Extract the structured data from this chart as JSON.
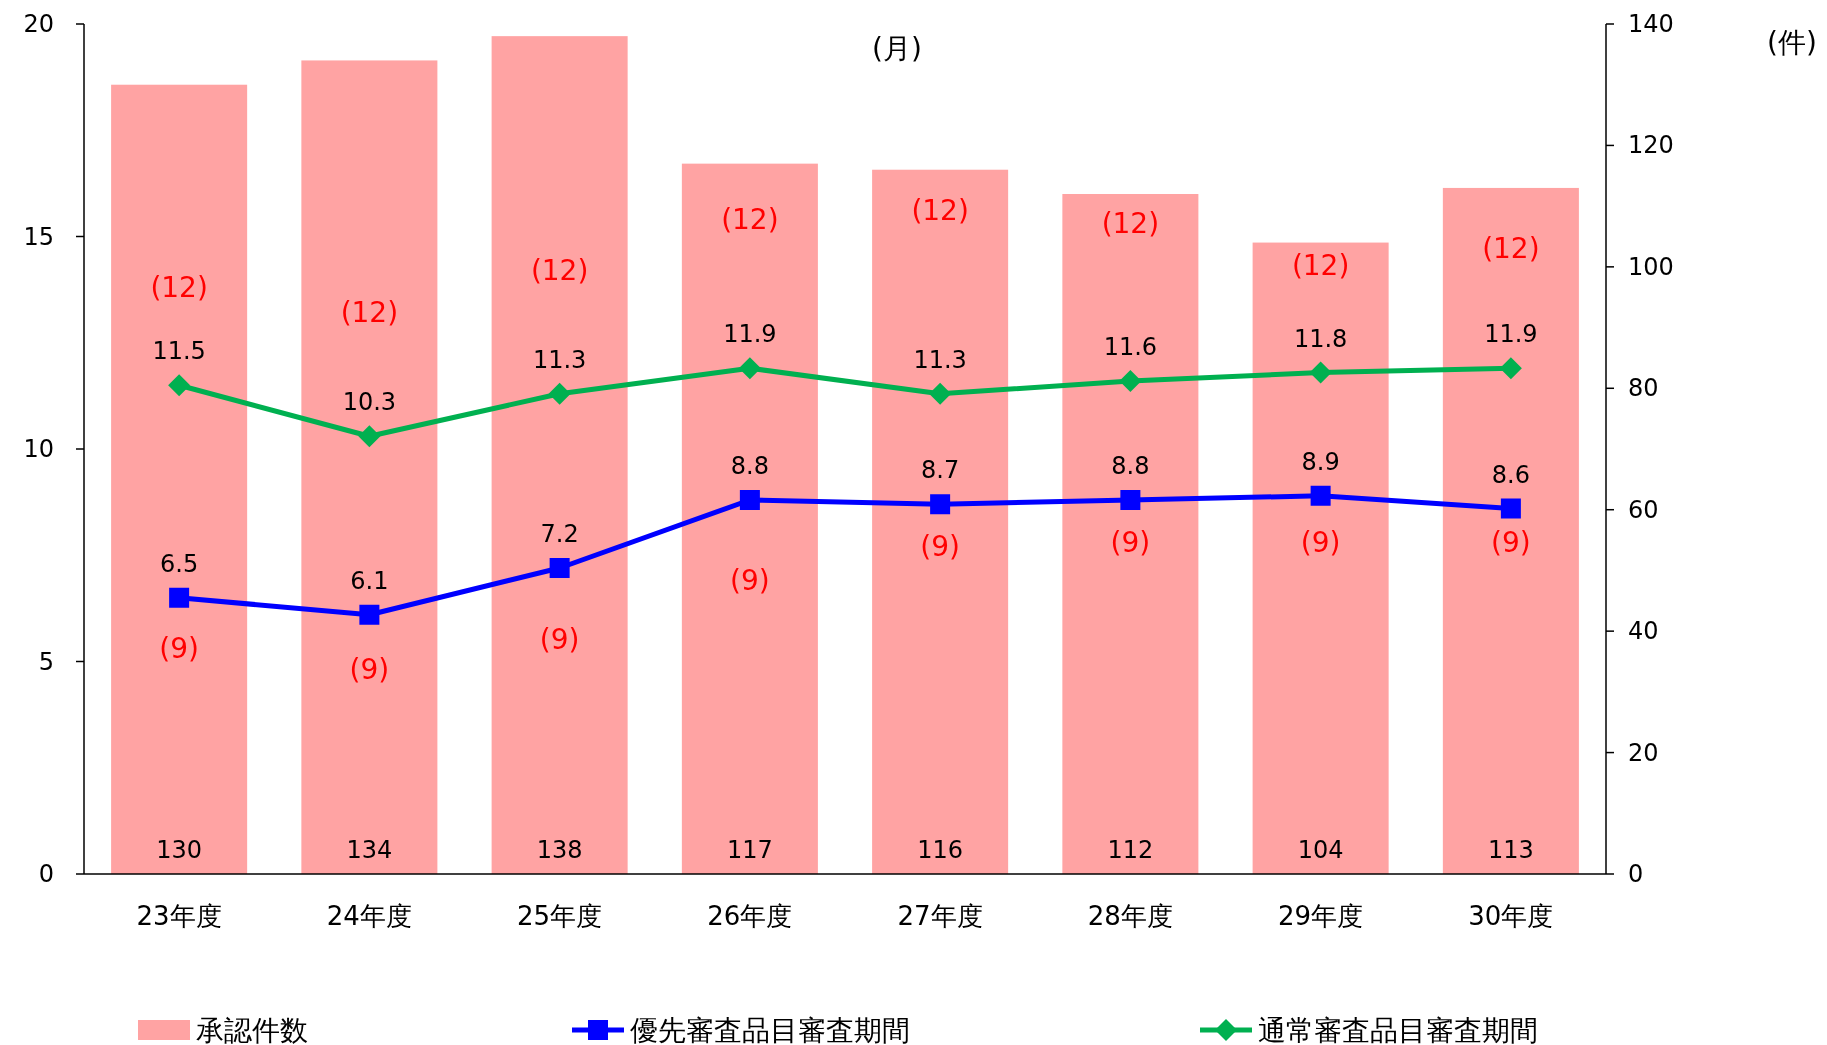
{
  "chart_data": {
    "type": "bar",
    "y2label": "(件)",
    "categories": [
      "23年度",
      "24年度",
      "25年度",
      "26年度",
      "27年度",
      "28年度",
      "29年度",
      "30年度"
    ],
    "series": [
      {
        "name": "承認件数",
        "axis": "y2",
        "color": "#ffa3a3",
        "values": [
          130,
          134,
          138,
          117,
          116,
          112,
          104,
          113
        ]
      },
      {
        "name": "優先審査品目審査期間",
        "type": "line",
        "marker": "square",
        "color": "#0000ff",
        "values": [
          6.5,
          6.1,
          7.2,
          8.8,
          8.7,
          8.8,
          8.9,
          8.6
        ]
      },
      {
        "name": "通常審査品目審査期間",
        "type": "line",
        "marker": "diamond",
        "color": "#00b050",
        "values": [
          11.5,
          10.3,
          11.3,
          11.9,
          11.3,
          11.6,
          11.8,
          11.9
        ]
      }
    ],
    "ylim": [
      0,
      20
    ],
    "yticks": [
      0,
      5,
      10,
      15,
      20
    ],
    "y2lim": [
      0,
      140
    ],
    "y2ticks": [
      0,
      20,
      40,
      60,
      80,
      100,
      120,
      140
    ],
    "data_labels": true,
    "legend": "bottom",
    "annotations": [
      "(月)",
      "(12)",
      "(12)",
      "(12)",
      "(12)",
      "(12)",
      "(12)",
      "(12)",
      "(12)",
      "(9)",
      "(9)",
      "(9)",
      "(9)",
      "(9)",
      "(9)",
      "(9)",
      "(9)"
    ]
  }
}
